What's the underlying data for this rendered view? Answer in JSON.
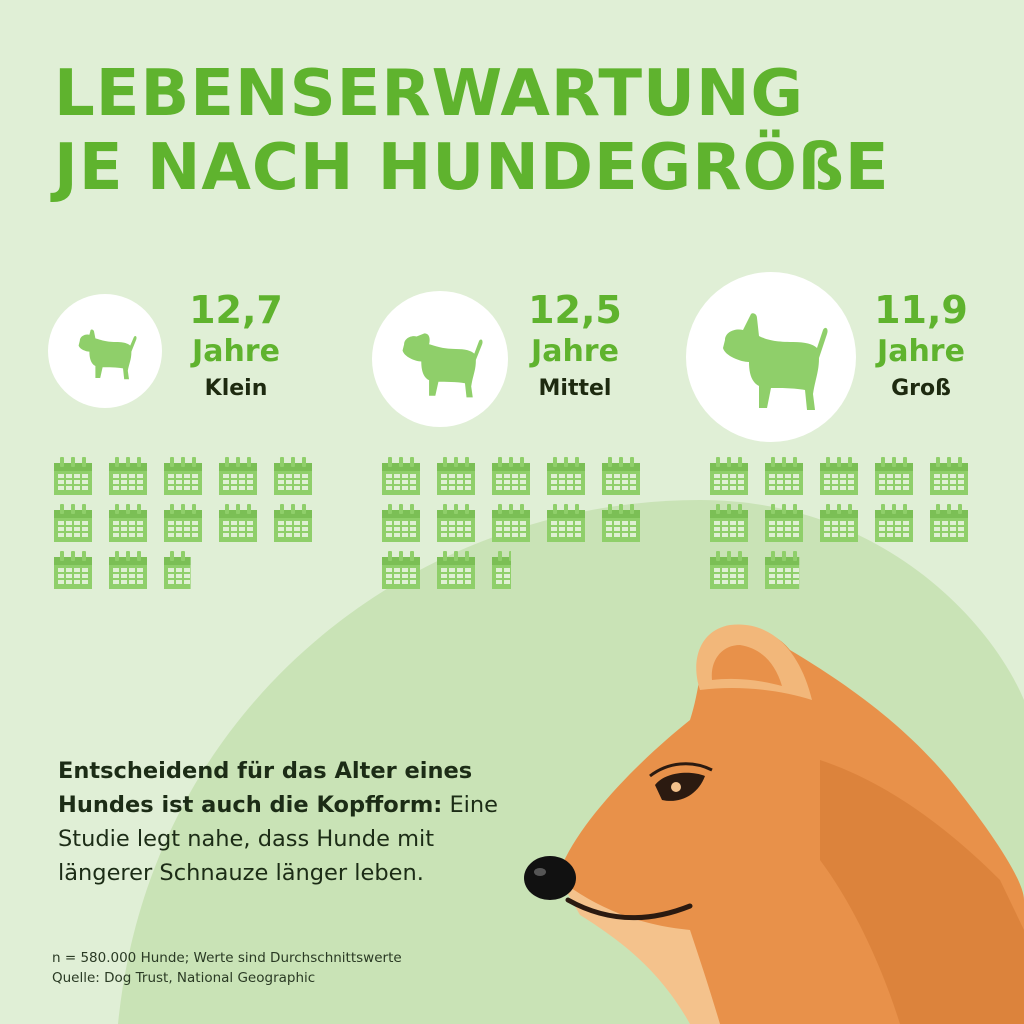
{
  "title": {
    "line1": "LEBENSERWARTUNG",
    "line2": "JE NACH HUNDEGRÖßE"
  },
  "chart_data": {
    "type": "pictogram",
    "title": "LEBENSERWARTUNG JE NACH HUNDEGRÖßE",
    "unit": "Jahre",
    "icon": "calendar-icon",
    "icon_represents": "1 Jahr",
    "categories": [
      "Klein",
      "Mittel",
      "Groß"
    ],
    "values": [
      12.7,
      12.5,
      11.9
    ],
    "value_labels": [
      "12,7",
      "12,5",
      "11,9"
    ]
  },
  "note": {
    "bold": "Entscheidend für das Alter eines Hundes ist auch die Kopfform:",
    "text": "Eine Studie legt nahe, dass Hunde mit längerer Schnauze länger leben."
  },
  "footer": {
    "sample": "n = 580.000 Hunde; Werte sind Durchschnittswerte",
    "source": "Quelle: Dog Trust, National Geographic"
  },
  "colors": {
    "background": "#e0efd6",
    "hill": "#c9e3b6",
    "accent_green": "#5fb32e",
    "icon_green": "#8fcf6a",
    "dog_orange": "#e8914a"
  }
}
